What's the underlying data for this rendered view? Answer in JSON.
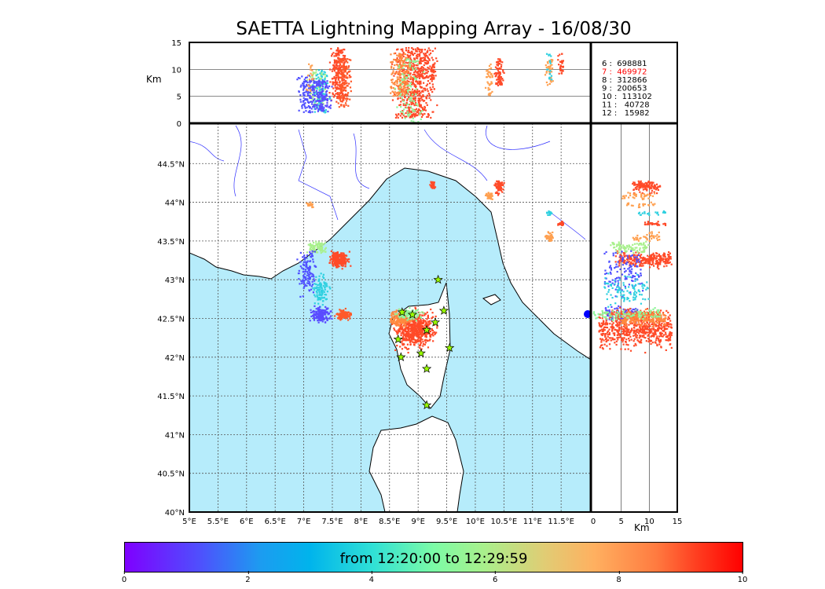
{
  "chart_data": {
    "type": "scatter",
    "title": "SAETTA Lightning Mapping Array - 16/08/30",
    "map": {
      "lon_range": [
        5,
        12.02
      ],
      "lat_range": [
        40,
        45.02
      ],
      "lon_ticks": [
        "5°E",
        "5.5°E",
        "6°E",
        "6.5°E",
        "7°E",
        "7.5°E",
        "8°E",
        "8.5°E",
        "9°E",
        "9.5°E",
        "10°E",
        "10.5°E",
        "11°E",
        "11.5°E"
      ],
      "lon_tick_values": [
        5,
        5.5,
        6,
        6.5,
        7,
        7.5,
        8,
        8.5,
        9,
        9.5,
        10,
        10.5,
        11,
        11.5
      ],
      "lat_ticks": [
        "40°N",
        "40.5°N",
        "41°N",
        "41.5°N",
        "42°N",
        "42.5°N",
        "43°N",
        "43.5°N",
        "44°N",
        "44.5°N"
      ],
      "lat_tick_values": [
        40,
        40.5,
        41,
        41.5,
        42,
        42.5,
        43,
        43.5,
        44,
        44.5
      ],
      "sea_color": "#b6ecfb"
    },
    "altitude": {
      "range": [
        0,
        15
      ],
      "ticks": [
        "0",
        "5",
        "10",
        "15"
      ],
      "tick_values": [
        0,
        5,
        10,
        15
      ],
      "unit": "Km"
    },
    "legend": [
      {
        "label": "6 :  698881",
        "color": "#000000"
      },
      {
        "label": "7 :  469972",
        "color": "#ff0000"
      },
      {
        "label": "8 :  312866",
        "color": "#000000"
      },
      {
        "label": "9 :  200653",
        "color": "#000000"
      },
      {
        "label": "10 :  113102",
        "color": "#000000"
      },
      {
        "label": "11 :   40728",
        "color": "#000000"
      },
      {
        "label": "12 :   15982",
        "color": "#000000"
      }
    ],
    "clusters": [
      {
        "lon": 7.62,
        "lat": 43.26,
        "slon": 0.1,
        "slat": 0.06,
        "n": 260,
        "color": "#ff4a28",
        "alt": [
          4,
          14
        ]
      },
      {
        "lon": 7.25,
        "lat": 43.42,
        "slon": 0.12,
        "slat": 0.05,
        "n": 90,
        "color": "#a8f08c",
        "alt": [
          3,
          10
        ]
      },
      {
        "lon": 7.05,
        "lat": 43.1,
        "slon": 0.1,
        "slat": 0.2,
        "n": 120,
        "color": "#5050ff",
        "alt": [
          2,
          9
        ]
      },
      {
        "lon": 7.3,
        "lat": 42.85,
        "slon": 0.1,
        "slat": 0.12,
        "n": 100,
        "color": "#2fd0e0",
        "alt": [
          2,
          10
        ]
      },
      {
        "lon": 7.3,
        "lat": 42.55,
        "slon": 0.12,
        "slat": 0.07,
        "n": 160,
        "color": "#5a4cff",
        "alt": [
          2,
          8
        ]
      },
      {
        "lon": 7.7,
        "lat": 42.55,
        "slon": 0.08,
        "slat": 0.04,
        "n": 120,
        "color": "#ff5a2a",
        "alt": [
          3,
          12
        ]
      },
      {
        "lon": 8.95,
        "lat": 42.35,
        "slon": 0.22,
        "slat": 0.15,
        "n": 600,
        "color": "#ff4a28",
        "alt": [
          1,
          14
        ]
      },
      {
        "lon": 8.7,
        "lat": 42.5,
        "slon": 0.12,
        "slat": 0.06,
        "n": 200,
        "color": "#ff8a40",
        "alt": [
          5,
          13
        ]
      },
      {
        "lon": 8.85,
        "lat": 42.55,
        "slon": 0.15,
        "slat": 0.05,
        "n": 100,
        "color": "#8ff59a",
        "alt": [
          0,
          12
        ]
      },
      {
        "lon": 9.25,
        "lat": 44.22,
        "slon": 0.03,
        "slat": 0.03,
        "n": 40,
        "color": "#ff4a28",
        "alt": [
          8,
          11
        ]
      },
      {
        "lon": 10.42,
        "lat": 44.2,
        "slon": 0.05,
        "slat": 0.06,
        "n": 80,
        "color": "#ff4a28",
        "alt": [
          7,
          12
        ]
      },
      {
        "lon": 10.25,
        "lat": 44.08,
        "slon": 0.04,
        "slat": 0.03,
        "n": 40,
        "color": "#ffa050",
        "alt": [
          5,
          11
        ]
      },
      {
        "lon": 11.5,
        "lat": 43.72,
        "slon": 0.04,
        "slat": 0.02,
        "n": 30,
        "color": "#ff4a28",
        "alt": [
          9,
          13
        ]
      },
      {
        "lon": 11.3,
        "lat": 43.55,
        "slon": 0.05,
        "slat": 0.04,
        "n": 40,
        "color": "#ffa050",
        "alt": [
          7,
          12
        ]
      },
      {
        "lon": 11.3,
        "lat": 43.85,
        "slon": 0.03,
        "slat": 0.02,
        "n": 20,
        "color": "#2fd0e0",
        "alt": [
          8,
          13
        ]
      },
      {
        "lon": 7.1,
        "lat": 43.97,
        "slon": 0.04,
        "slat": 0.02,
        "n": 20,
        "color": "#ffa050",
        "alt": [
          6,
          11
        ]
      }
    ],
    "stations": [
      [
        9.35,
        43.0
      ],
      [
        8.72,
        42.58
      ],
      [
        8.9,
        42.55
      ],
      [
        9.3,
        42.45
      ],
      [
        9.45,
        42.6
      ],
      [
        9.15,
        42.35
      ],
      [
        8.65,
        42.23
      ],
      [
        9.55,
        42.12
      ],
      [
        9.05,
        42.05
      ],
      [
        8.7,
        42.0
      ],
      [
        9.15,
        41.85
      ],
      [
        9.15,
        41.38
      ]
    ],
    "colorbar": {
      "label": "from 12:20:00 to 12:29:59",
      "range": [
        0,
        10
      ],
      "ticks": [
        "0",
        "2",
        "4",
        "6",
        "8",
        "10"
      ]
    }
  }
}
